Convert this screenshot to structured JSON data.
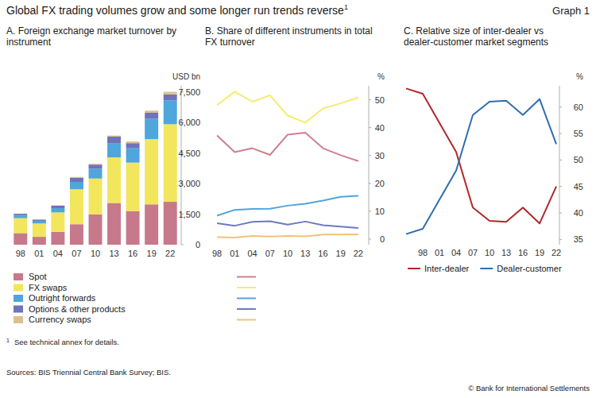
{
  "header": {
    "title": "Global FX trading volumes grow and some longer run trends reverse",
    "title_note": "1",
    "graph_label": "Graph 1"
  },
  "chart_data": [
    {
      "type": "bar",
      "stacked": true,
      "title": "A. Foreign exchange market turnover by instrument",
      "ylabel": "USD bn",
      "categories": [
        "98",
        "01",
        "04",
        "07",
        "10",
        "13",
        "16",
        "19",
        "22"
      ],
      "series": [
        {
          "name": "Spot",
          "color": "#c6798b",
          "values": [
            568,
            386,
            631,
            1005,
            1489,
            2047,
            1652,
            1979,
            2104
          ]
        },
        {
          "name": "FX swaps",
          "color": "#f2e65c",
          "values": [
            734,
            656,
            954,
            1714,
            1759,
            2240,
            2378,
            3202,
            3810
          ]
        },
        {
          "name": "Outright forwards",
          "color": "#4ea6dc",
          "values": [
            128,
            130,
            209,
            362,
            475,
            679,
            700,
            999,
            1163
          ]
        },
        {
          "name": "Options & other products",
          "color": "#6f73b9",
          "values": [
            87,
            60,
            119,
            212,
            207,
            337,
            254,
            294,
            304
          ]
        },
        {
          "name": "Currency swaps",
          "color": "#dcc08e",
          "values": [
            10,
            7,
            21,
            31,
            43,
            54,
            82,
            108,
            124
          ]
        }
      ],
      "ylim": [
        0,
        7800
      ],
      "yticks": [
        0,
        {
          "value": 1500,
          "label": "1,500"
        },
        {
          "value": 3000,
          "label": "3,000"
        },
        {
          "value": 4500,
          "label": "4,500"
        },
        {
          "value": 6000,
          "label": "6,000"
        },
        {
          "value": 7500,
          "label": "7,500"
        }
      ],
      "grid": false,
      "legend": "bottom"
    },
    {
      "type": "line",
      "title": "B. Share of different instruments in total FX turnover",
      "ylabel": "%",
      "categories": [
        "98",
        "01",
        "04",
        "07",
        "10",
        "13",
        "16",
        "19",
        "22"
      ],
      "series": [
        {
          "name": "Spot",
          "color": "#cf7f90",
          "values": [
            37.2,
            31.2,
            32.6,
            30.2,
            37.5,
            38.2,
            32.6,
            30.1,
            28.0
          ]
        },
        {
          "name": "FX swaps",
          "color": "#f5ec6a",
          "values": [
            48.1,
            52.9,
            49.3,
            51.6,
            44.3,
            41.8,
            46.9,
            48.7,
            50.8
          ]
        },
        {
          "name": "Outright forwards",
          "color": "#4ea6dc",
          "values": [
            8.4,
            10.5,
            10.8,
            10.9,
            12.0,
            12.7,
            13.8,
            15.2,
            15.5
          ]
        },
        {
          "name": "Options & other products",
          "color": "#6f79c0",
          "values": [
            5.7,
            4.8,
            6.2,
            6.4,
            5.2,
            6.3,
            5.0,
            4.5,
            4.0
          ]
        },
        {
          "name": "Currency swaps",
          "color": "#f1c27a",
          "values": [
            0.7,
            0.6,
            1.1,
            0.9,
            1.1,
            1.0,
            1.6,
            1.6,
            1.7
          ]
        }
      ],
      "ylim": [
        -2,
        55
      ],
      "yticks": [
        0,
        10,
        20,
        30,
        40,
        50
      ],
      "grid": false,
      "legend": "bottom"
    },
    {
      "type": "line",
      "title": "C. Relative size of inter-dealer vs dealer-customer market segments",
      "ylabel": "%",
      "categories": [
        null,
        "98",
        "01",
        "04",
        "07",
        "10",
        "13",
        "16",
        "19",
        "22"
      ],
      "series": [
        {
          "name": "Inter-dealer",
          "color": "#b3262a",
          "values": [
            63.5,
            62.5,
            57,
            51.5,
            41,
            38.5,
            38.3,
            41,
            38,
            45
          ]
        },
        {
          "name": "Dealer-customer",
          "color": "#2f6db0",
          "values": [
            36,
            37,
            42.5,
            48,
            58.5,
            61,
            61.2,
            58.5,
            61.5,
            53
          ]
        }
      ],
      "ylim": [
        34,
        64
      ],
      "yticks": [
        35,
        40,
        45,
        50,
        55,
        60
      ],
      "grid": false,
      "legend": "bottom"
    }
  ],
  "footnotes": [
    {
      "mark": "1",
      "text": "See technical annex for details."
    }
  ],
  "sources": "Sources: BIS Triennial Central Bank Survey; BIS.",
  "copyright": "© Bank for International Settlements"
}
